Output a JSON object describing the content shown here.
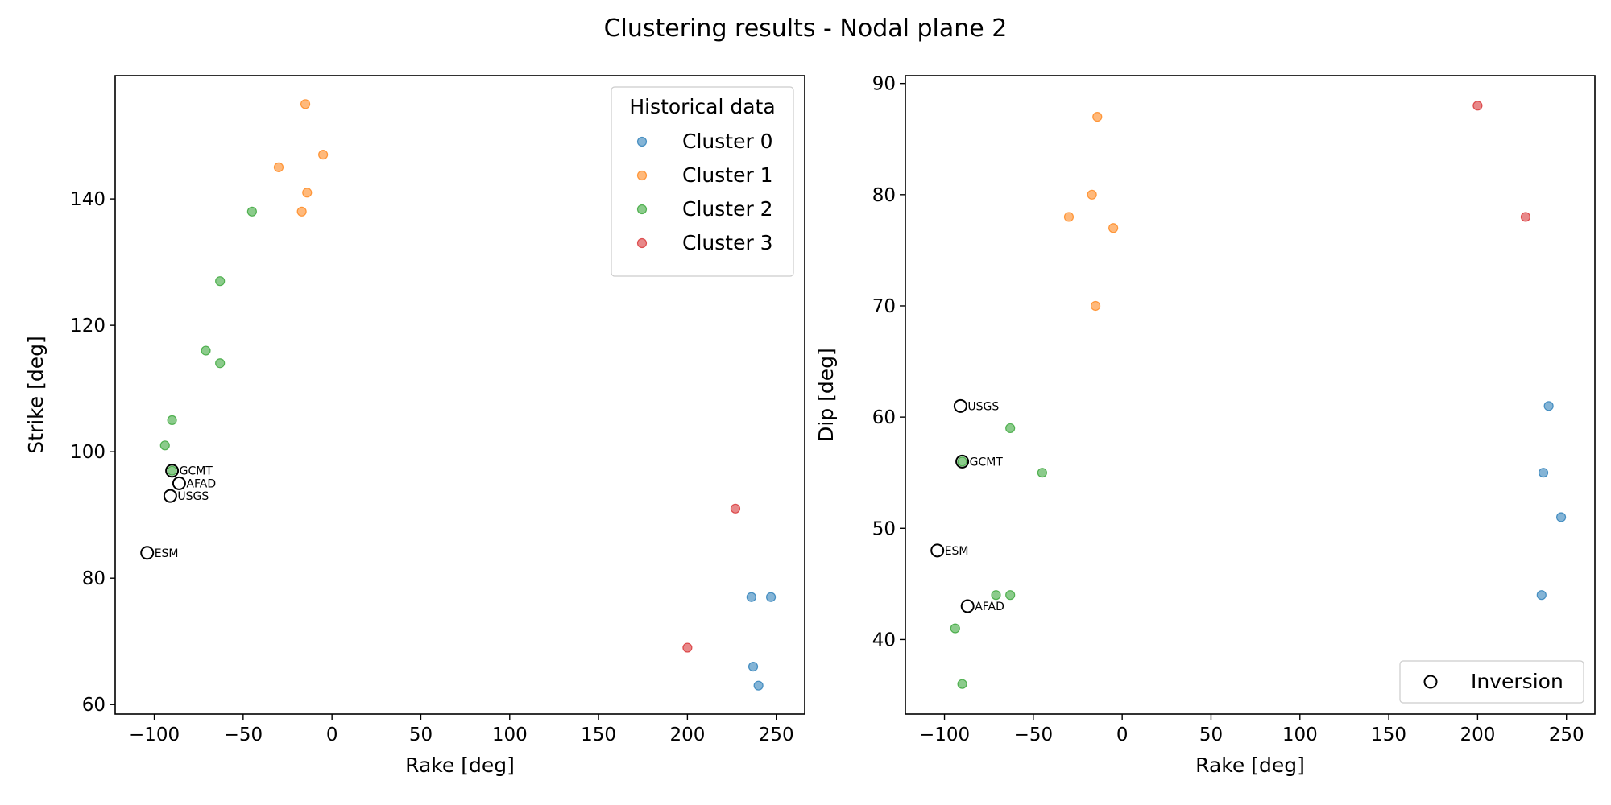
{
  "figure": {
    "title": "Clustering results - Nodal plane 2"
  },
  "colors": {
    "Cluster 0": "#1f77b4",
    "Cluster 1": "#ff7f0e",
    "Cluster 2": "#2ca02c",
    "Cluster 3": "#d62728"
  },
  "chart_data": [
    {
      "type": "scatter",
      "xlabel": "Rake [deg]",
      "ylabel": "Strike [deg]",
      "xlim": [
        -122,
        266
      ],
      "ylim": [
        58.5,
        159.5
      ],
      "xticks": [
        -100,
        -50,
        0,
        50,
        100,
        150,
        200,
        250
      ],
      "yticks": [
        60,
        80,
        100,
        120,
        140
      ],
      "grid": false,
      "legend": {
        "title": "Historical data",
        "position": "upper right",
        "entries": [
          "Cluster 0",
          "Cluster 1",
          "Cluster 2",
          "Cluster 3"
        ]
      },
      "series": [
        {
          "name": "Cluster 0",
          "points": [
            [
              236,
              77
            ],
            [
              247,
              77
            ],
            [
              237,
              66
            ],
            [
              240,
              63
            ]
          ]
        },
        {
          "name": "Cluster 1",
          "points": [
            [
              -15,
              155
            ],
            [
              -30,
              145
            ],
            [
              -5,
              147
            ],
            [
              -14,
              141
            ],
            [
              -17,
              138
            ]
          ]
        },
        {
          "name": "Cluster 2",
          "points": [
            [
              -45,
              138
            ],
            [
              -63,
              127
            ],
            [
              -71,
              116
            ],
            [
              -63,
              114
            ],
            [
              -90,
              105
            ],
            [
              -94,
              101
            ],
            [
              -90,
              97
            ]
          ]
        },
        {
          "name": "Cluster 3",
          "points": [
            [
              227,
              91
            ],
            [
              200,
              69
            ]
          ]
        }
      ],
      "inversion": [
        {
          "label": "GCMT",
          "x": -90,
          "y": 97
        },
        {
          "label": "AFAD",
          "x": -86,
          "y": 95
        },
        {
          "label": "USGS",
          "x": -91,
          "y": 93
        },
        {
          "label": "ESM",
          "x": -104,
          "y": 84
        }
      ]
    },
    {
      "type": "scatter",
      "xlabel": "Rake [deg]",
      "ylabel": "Dip [deg]",
      "xlim": [
        -122,
        266
      ],
      "ylim": [
        33.3,
        90.7
      ],
      "xticks": [
        -100,
        -50,
        0,
        50,
        100,
        150,
        200,
        250
      ],
      "yticks": [
        40,
        50,
        60,
        70,
        80,
        90
      ],
      "grid": false,
      "legend": {
        "title": "",
        "position": "lower right",
        "entries": [
          "Inversion"
        ]
      },
      "series": [
        {
          "name": "Cluster 0",
          "points": [
            [
              240,
              61
            ],
            [
              237,
              55
            ],
            [
              247,
              51
            ],
            [
              236,
              44
            ]
          ]
        },
        {
          "name": "Cluster 1",
          "points": [
            [
              -14,
              87
            ],
            [
              -17,
              80
            ],
            [
              -30,
              78
            ],
            [
              -5,
              77
            ],
            [
              -15,
              70
            ]
          ]
        },
        {
          "name": "Cluster 2",
          "points": [
            [
              -63,
              59
            ],
            [
              -45,
              55
            ],
            [
              -90,
              56
            ],
            [
              -71,
              44
            ],
            [
              -63,
              44
            ],
            [
              -94,
              41
            ],
            [
              -90,
              36
            ]
          ]
        },
        {
          "name": "Cluster 3",
          "points": [
            [
              200,
              88
            ],
            [
              227,
              78
            ]
          ]
        }
      ],
      "inversion": [
        {
          "label": "USGS",
          "x": -91,
          "y": 61
        },
        {
          "label": "GCMT",
          "x": -90,
          "y": 56
        },
        {
          "label": "ESM",
          "x": -104,
          "y": 48
        },
        {
          "label": "AFAD",
          "x": -87,
          "y": 43
        }
      ]
    }
  ]
}
